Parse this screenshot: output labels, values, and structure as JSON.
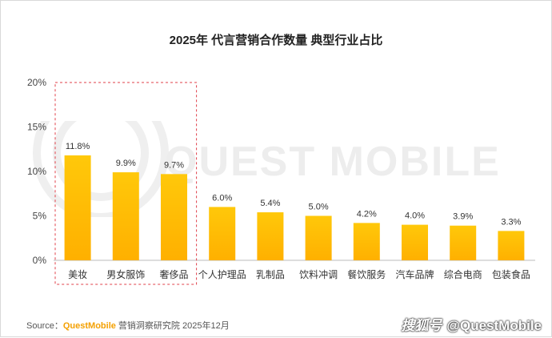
{
  "chart_data": {
    "type": "bar",
    "title": "2025年 代言营销合作数量 典型行业占比",
    "categories": [
      "美妆",
      "男女服饰",
      "奢侈品",
      "个人护理品",
      "乳制品",
      "饮料冲调",
      "餐饮服务",
      "汽车品牌",
      "综合电商",
      "包装食品"
    ],
    "values": [
      11.8,
      9.9,
      9.7,
      6.0,
      5.4,
      5.0,
      4.2,
      4.0,
      3.9,
      3.3
    ],
    "value_labels": [
      "11.8%",
      "9.9%",
      "9.7%",
      "6.0%",
      "5.4%",
      "5.0%",
      "4.2%",
      "4.0%",
      "3.9%",
      "3.3%"
    ],
    "y_ticks": [
      "0%",
      "5%",
      "10%",
      "15%",
      "20%"
    ],
    "ylim": [
      0,
      20
    ],
    "highlight_categories": [
      "美妆",
      "男女服饰",
      "奢侈品"
    ],
    "grid": false,
    "colors": {
      "bar_top": "#ffc80a",
      "bar_bottom": "#ffb000",
      "highlight_border": "#e0404a"
    }
  },
  "source": {
    "prefix": "Source：",
    "brand": "QuestMobile",
    "text": " 营销洞察研究院 2025年12月"
  },
  "credit": {
    "cn": "搜狐号",
    "handle": "@QuestMobile"
  },
  "watermark": {
    "text": "QUEST MOBILE",
    "color": "#ececec"
  }
}
